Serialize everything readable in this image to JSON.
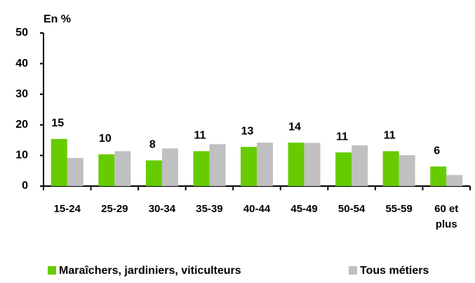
{
  "chart_data": {
    "type": "bar",
    "y_label": "En %",
    "categories": [
      "15-24",
      "25-29",
      "30-34",
      "35-39",
      "40-44",
      "45-49",
      "50-54",
      "55-59",
      "60 et plus"
    ],
    "series": [
      {
        "name": "Maraîchers, jardiniers, viticulteurs",
        "color": "#66cc00",
        "values": [
          15.4,
          10.4,
          8.4,
          11.4,
          12.8,
          14.2,
          11.0,
          11.4,
          6.4
        ],
        "value_labels": [
          "15",
          "10",
          "8",
          "11",
          "13",
          "14",
          "11",
          "11",
          "6"
        ]
      },
      {
        "name": "Tous métiers",
        "color": "#c0c0c0",
        "values": [
          9.2,
          11.4,
          12.3,
          13.7,
          14.2,
          14.1,
          13.3,
          10.1,
          3.6
        ]
      }
    ],
    "ylim": [
      0,
      50
    ],
    "yticks": [
      0,
      10,
      20,
      30,
      40,
      50
    ]
  }
}
